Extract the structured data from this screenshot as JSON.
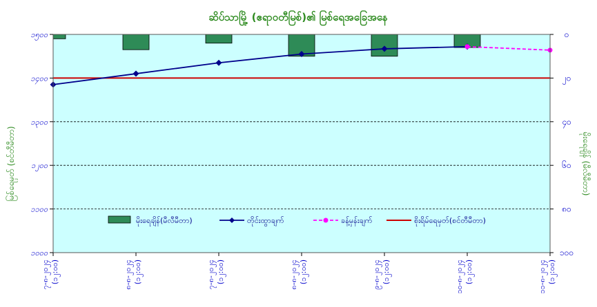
{
  "chart_data": {
    "type": "bar+line",
    "title": "ဆိပ်သာမြို့ (ဧရာဝတီမြစ်)၏ မြစ်ရေအခြေအနေ",
    "ylabel_left": "မြစ်ရေမှတ် (စင်တီမီတာ)",
    "ylabel_right": "မိုးရေချိန် (မီလီမီတာ)",
    "left_axis": {
      "min": 1000,
      "max": 1500,
      "step": 100,
      "tick_labels": [
        "၁၀၀၀",
        "၁၁၀၀",
        "၁၂၀၀",
        "၁၃၀၀",
        "၁၄၀၀",
        "၁၅၀၀"
      ]
    },
    "right_axis": {
      "min": 0,
      "max": 100,
      "step": 20,
      "inverted": true,
      "tick_labels": [
        "၀",
        "၂၀",
        "၄၀",
        "၆၀",
        "၈၀",
        "၁၀၀"
      ]
    },
    "categories": [
      [
        "၇-၈-၂၀၂၄",
        "(၁၂:၀၀)"
      ],
      [
        "၈-၈-၂၀၂၄",
        "(၁၂:၀၀)"
      ],
      [
        "၇-၈-၂၀၂၄",
        "(၁၂:၀၀)"
      ],
      [
        "၈-၈-၂၀၂၄",
        "(၁၂:၀၀)"
      ],
      [
        "၉-၈-၂၀၂၄",
        "(၁၂:၀၀)"
      ],
      [
        "၁၀-၈-၂၀၂၄",
        "(၁၂:၀၀)"
      ],
      [
        "၁၁-၈-၂၀၂၄",
        "(၁၂:၀၀)"
      ]
    ],
    "series": [
      {
        "name": "မိုးရေချိန်(မီလီမီတာ)",
        "kind": "bar",
        "axis": "right",
        "color": "#2e8b57",
        "values": [
          2,
          7,
          4,
          10,
          10,
          6,
          null
        ]
      },
      {
        "name": "တိုင်းထွာချက်",
        "kind": "line",
        "axis": "left",
        "color": "#00008b",
        "marker": "diamond",
        "values": [
          1385,
          1410,
          1435,
          1455,
          1467,
          1472,
          null
        ]
      },
      {
        "name": "ခန့်မှန်းချက်",
        "kind": "line",
        "axis": "left",
        "color": "#ff00ff",
        "marker": "circle",
        "dashed": true,
        "values": [
          null,
          null,
          null,
          null,
          null,
          1472,
          1464
        ]
      },
      {
        "name": "စိုးရိမ်ရေမှတ်(စင်တီမီတာ)",
        "kind": "hline",
        "axis": "left",
        "color": "#cc0000",
        "value": 1400
      }
    ],
    "grid": "horizontal-dashed",
    "legend_position": "center",
    "colors": {
      "plot_background": "#ccffff",
      "title": "#2e8b20",
      "ticks": "#0000cc"
    }
  }
}
